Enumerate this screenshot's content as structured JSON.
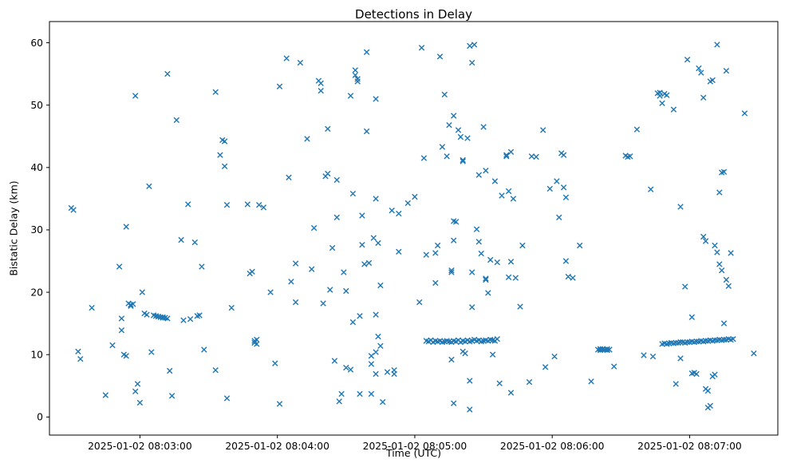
{
  "chart_data": {
    "type": "scatter",
    "title": "Detections in Delay",
    "xlabel": "Time (UTC)",
    "ylabel": "Bistatic Delay (km)",
    "marker": "x",
    "marker_color": "#1f77b4",
    "axis_color": "#000000",
    "grid": false,
    "x_unit": "seconds after 2025-01-02 08:02:00 UTC",
    "xlim": [
      20.5,
      338.5
    ],
    "ylim": [
      -2.9,
      63.4
    ],
    "x_ticks": [
      {
        "value": 60,
        "label": "2025-01-02 08:03:00"
      },
      {
        "value": 120,
        "label": "2025-01-02 08:04:00"
      },
      {
        "value": 180,
        "label": "2025-01-02 08:05:00"
      },
      {
        "value": 240,
        "label": "2025-01-02 08:06:00"
      },
      {
        "value": 300,
        "label": "2025-01-02 08:07:00"
      }
    ],
    "y_ticks": [
      0,
      10,
      20,
      30,
      40,
      50,
      60
    ],
    "points": [
      [
        30,
        33.5
      ],
      [
        31,
        33.2
      ],
      [
        33,
        10.5
      ],
      [
        34,
        9.3
      ],
      [
        39,
        17.5
      ],
      [
        45,
        3.5
      ],
      [
        48,
        11.5
      ],
      [
        51,
        24.1
      ],
      [
        52,
        15.8
      ],
      [
        52,
        13.9
      ],
      [
        53,
        10.0
      ],
      [
        54,
        9.8
      ],
      [
        54,
        30.5
      ],
      [
        55,
        18.2
      ],
      [
        56,
        18.0
      ],
      [
        56,
        17.8
      ],
      [
        57,
        18.1
      ],
      [
        58,
        51.5
      ],
      [
        58,
        4.1
      ],
      [
        59,
        5.3
      ],
      [
        60,
        2.3
      ],
      [
        61,
        20.0
      ],
      [
        62,
        16.6
      ],
      [
        63,
        16.4
      ],
      [
        64,
        37.0
      ],
      [
        65,
        10.4
      ],
      [
        66,
        16.3
      ],
      [
        67,
        16.2
      ],
      [
        68,
        16.1
      ],
      [
        69,
        16.0
      ],
      [
        70,
        16.0
      ],
      [
        70,
        15.9
      ],
      [
        71,
        15.9
      ],
      [
        72,
        15.8
      ],
      [
        72,
        55.0
      ],
      [
        73,
        7.4
      ],
      [
        74,
        3.4
      ],
      [
        76,
        47.6
      ],
      [
        78,
        28.4
      ],
      [
        79,
        15.5
      ],
      [
        81,
        34.1
      ],
      [
        82,
        15.7
      ],
      [
        84,
        28.0
      ],
      [
        85,
        16.2
      ],
      [
        86,
        16.3
      ],
      [
        87,
        24.1
      ],
      [
        88,
        10.8
      ],
      [
        93,
        52.1
      ],
      [
        93,
        7.5
      ],
      [
        95,
        42.0
      ],
      [
        96,
        44.4
      ],
      [
        97,
        44.2
      ],
      [
        97,
        40.2
      ],
      [
        98,
        34.0
      ],
      [
        98,
        3.0
      ],
      [
        100,
        17.5
      ],
      [
        107,
        34.1
      ],
      [
        108,
        23.0
      ],
      [
        109,
        23.3
      ],
      [
        110,
        12.2
      ],
      [
        110,
        11.9
      ],
      [
        111,
        11.7
      ],
      [
        111,
        12.4
      ],
      [
        112,
        34.0
      ],
      [
        114,
        33.6
      ],
      [
        117,
        20.0
      ],
      [
        119,
        8.6
      ],
      [
        121,
        53.0
      ],
      [
        121,
        2.1
      ],
      [
        124,
        57.5
      ],
      [
        125,
        38.4
      ],
      [
        126,
        21.7
      ],
      [
        128,
        24.6
      ],
      [
        128,
        18.4
      ],
      [
        130,
        56.8
      ],
      [
        133,
        44.6
      ],
      [
        135,
        23.7
      ],
      [
        136,
        30.3
      ],
      [
        138,
        53.9
      ],
      [
        139,
        53.5
      ],
      [
        139,
        52.3
      ],
      [
        140,
        18.2
      ],
      [
        141,
        38.6
      ],
      [
        142,
        39.0
      ],
      [
        142,
        46.2
      ],
      [
        143,
        20.4
      ],
      [
        144,
        27.1
      ],
      [
        145,
        9.0
      ],
      [
        146,
        32.0
      ],
      [
        146,
        38.0
      ],
      [
        147,
        2.5
      ],
      [
        148,
        3.7
      ],
      [
        149,
        23.2
      ],
      [
        150,
        20.2
      ],
      [
        150,
        7.9
      ],
      [
        152,
        51.5
      ],
      [
        152,
        7.6
      ],
      [
        153,
        15.2
      ],
      [
        153,
        35.8
      ],
      [
        154,
        55.6
      ],
      [
        154,
        54.8
      ],
      [
        155,
        54.2
      ],
      [
        155,
        53.8
      ],
      [
        156,
        16.2
      ],
      [
        156,
        3.7
      ],
      [
        157,
        32.3
      ],
      [
        157,
        27.6
      ],
      [
        158,
        24.5
      ],
      [
        159,
        58.5
      ],
      [
        159,
        45.8
      ],
      [
        160,
        24.7
      ],
      [
        161,
        8.5
      ],
      [
        161,
        9.8
      ],
      [
        161,
        3.7
      ],
      [
        162,
        28.7
      ],
      [
        163,
        51.0
      ],
      [
        163,
        35.0
      ],
      [
        163,
        16.4
      ],
      [
        163,
        10.4
      ],
      [
        163,
        6.9
      ],
      [
        164,
        27.9
      ],
      [
        164,
        12.9
      ],
      [
        165,
        11.4
      ],
      [
        165,
        21.1
      ],
      [
        166,
        2.4
      ],
      [
        168,
        7.2
      ],
      [
        170,
        33.1
      ],
      [
        171,
        7.5
      ],
      [
        171,
        6.9
      ],
      [
        173,
        32.6
      ],
      [
        173,
        26.5
      ],
      [
        177,
        34.3
      ],
      [
        180,
        35.3
      ],
      [
        182,
        18.4
      ],
      [
        183,
        59.2
      ],
      [
        184,
        41.5
      ],
      [
        185,
        26.0
      ],
      [
        189,
        26.3
      ],
      [
        189,
        21.5
      ],
      [
        190,
        27.5
      ],
      [
        191,
        57.8
      ],
      [
        192,
        43.3
      ],
      [
        193,
        51.7
      ],
      [
        194,
        41.8
      ],
      [
        195,
        46.8
      ],
      [
        196,
        23.5
      ],
      [
        196,
        23.2
      ],
      [
        196,
        9.2
      ],
      [
        197,
        28.3
      ],
      [
        197,
        48.3
      ],
      [
        197,
        31.4
      ],
      [
        198,
        31.3
      ],
      [
        197,
        2.2
      ],
      [
        199,
        46.0
      ],
      [
        200,
        44.9
      ],
      [
        201,
        41.2
      ],
      [
        201,
        41.0
      ],
      [
        201,
        10.5
      ],
      [
        202,
        10.2
      ],
      [
        203,
        44.7
      ],
      [
        204,
        59.5
      ],
      [
        204,
        5.8
      ],
      [
        204,
        1.2
      ],
      [
        205,
        56.8
      ],
      [
        205,
        23.2
      ],
      [
        205,
        17.6
      ],
      [
        206,
        59.7
      ],
      [
        207,
        30.1
      ],
      [
        208,
        38.8
      ],
      [
        208,
        28.1
      ],
      [
        209,
        26.2
      ],
      [
        210,
        46.5
      ],
      [
        211,
        22.2
      ],
      [
        211,
        22.0
      ],
      [
        211,
        39.5
      ],
      [
        212,
        19.9
      ],
      [
        213,
        25.2
      ],
      [
        214,
        10.0
      ],
      [
        215,
        37.8
      ],
      [
        216,
        24.8
      ],
      [
        217,
        5.4
      ],
      [
        218,
        35.5
      ],
      [
        185,
        12.2
      ],
      [
        186,
        12.1
      ],
      [
        187,
        12.3
      ],
      [
        188,
        12.0
      ],
      [
        189,
        12.2
      ],
      [
        190,
        12.1
      ],
      [
        191,
        12.2
      ],
      [
        192,
        12.0
      ],
      [
        193,
        12.1
      ],
      [
        194,
        12.2
      ],
      [
        195,
        12.1
      ],
      [
        196,
        12.0
      ],
      [
        197,
        12.2
      ],
      [
        198,
        12.1
      ],
      [
        199,
        12.3
      ],
      [
        200,
        12.0
      ],
      [
        201,
        12.2
      ],
      [
        202,
        12.1
      ],
      [
        203,
        12.3
      ],
      [
        204,
        12.1
      ],
      [
        205,
        12.2
      ],
      [
        206,
        12.4
      ],
      [
        207,
        12.2
      ],
      [
        208,
        12.3
      ],
      [
        209,
        12.1
      ],
      [
        210,
        12.2
      ],
      [
        211,
        12.3
      ],
      [
        212,
        12.2
      ],
      [
        213,
        12.4
      ],
      [
        214,
        12.3
      ],
      [
        215,
        12.2
      ],
      [
        216,
        12.5
      ],
      [
        220,
        42.0
      ],
      [
        220,
        41.8
      ],
      [
        221,
        22.4
      ],
      [
        221,
        36.2
      ],
      [
        222,
        42.5
      ],
      [
        222,
        24.9
      ],
      [
        222,
        3.9
      ],
      [
        223,
        35.0
      ],
      [
        224,
        22.3
      ],
      [
        226,
        17.7
      ],
      [
        227,
        27.5
      ],
      [
        230,
        5.6
      ],
      [
        231,
        41.8
      ],
      [
        233,
        41.7
      ],
      [
        236,
        46.0
      ],
      [
        237,
        8.0
      ],
      [
        239,
        36.6
      ],
      [
        241,
        9.7
      ],
      [
        242,
        37.8
      ],
      [
        243,
        32.0
      ],
      [
        244,
        42.3
      ],
      [
        245,
        42.0
      ],
      [
        245,
        36.8
      ],
      [
        246,
        35.2
      ],
      [
        246,
        25.0
      ],
      [
        247,
        22.5
      ],
      [
        249,
        22.3
      ],
      [
        252,
        27.5
      ],
      [
        257,
        5.7
      ],
      [
        260,
        10.8
      ],
      [
        261,
        10.9
      ],
      [
        261,
        10.7
      ],
      [
        262,
        10.8
      ],
      [
        262,
        10.9
      ],
      [
        263,
        10.8
      ],
      [
        264,
        10.7
      ],
      [
        264,
        10.9
      ],
      [
        265,
        10.8
      ],
      [
        267,
        8.1
      ],
      [
        272,
        41.9
      ],
      [
        273,
        41.7
      ],
      [
        274,
        41.8
      ],
      [
        277,
        46.1
      ],
      [
        280,
        9.9
      ],
      [
        283,
        36.5
      ],
      [
        284,
        9.7
      ],
      [
        286,
        51.9
      ],
      [
        287,
        51.5
      ],
      [
        287,
        52.0
      ],
      [
        288,
        50.3
      ],
      [
        289,
        51.8
      ],
      [
        290,
        51.6
      ],
      [
        293,
        49.3
      ],
      [
        294,
        5.3
      ],
      [
        296,
        9.4
      ],
      [
        296,
        33.7
      ],
      [
        298,
        20.9
      ],
      [
        299,
        57.3
      ],
      [
        301,
        16.0
      ],
      [
        301,
        7.0
      ],
      [
        302,
        7.1
      ],
      [
        303,
        6.9
      ],
      [
        304,
        55.9
      ],
      [
        305,
        55.2
      ],
      [
        306,
        51.2
      ],
      [
        306,
        28.9
      ],
      [
        307,
        28.2
      ],
      [
        307,
        4.5
      ],
      [
        308,
        4.2
      ],
      [
        308,
        1.5
      ],
      [
        309,
        1.8
      ],
      [
        309,
        53.8
      ],
      [
        310,
        54.0
      ],
      [
        310,
        6.5
      ],
      [
        311,
        6.8
      ],
      [
        311,
        27.5
      ],
      [
        312,
        26.4
      ],
      [
        312,
        59.7
      ],
      [
        313,
        24.5
      ],
      [
        313,
        36.0
      ],
      [
        314,
        39.2
      ],
      [
        315,
        39.3
      ],
      [
        314,
        23.5
      ],
      [
        315,
        15.0
      ],
      [
        316,
        55.5
      ],
      [
        316,
        22.0
      ],
      [
        317,
        21.0
      ],
      [
        318,
        26.3
      ],
      [
        288,
        11.7
      ],
      [
        289,
        11.8
      ],
      [
        290,
        11.7
      ],
      [
        291,
        11.8
      ],
      [
        292,
        11.9
      ],
      [
        293,
        11.8
      ],
      [
        294,
        11.9
      ],
      [
        295,
        11.9
      ],
      [
        296,
        12.0
      ],
      [
        297,
        12.0
      ],
      [
        298,
        11.9
      ],
      [
        299,
        12.0
      ],
      [
        300,
        12.0
      ],
      [
        301,
        12.1
      ],
      [
        302,
        12.0
      ],
      [
        303,
        12.1
      ],
      [
        304,
        12.1
      ],
      [
        305,
        12.2
      ],
      [
        306,
        12.1
      ],
      [
        307,
        12.2
      ],
      [
        308,
        12.2
      ],
      [
        309,
        12.3
      ],
      [
        310,
        12.2
      ],
      [
        311,
        12.3
      ],
      [
        312,
        12.3
      ],
      [
        313,
        12.4
      ],
      [
        314,
        12.3
      ],
      [
        315,
        12.4
      ],
      [
        316,
        12.4
      ],
      [
        317,
        12.5
      ],
      [
        318,
        12.4
      ],
      [
        319,
        12.5
      ],
      [
        324,
        48.7
      ],
      [
        328,
        10.2
      ]
    ]
  }
}
